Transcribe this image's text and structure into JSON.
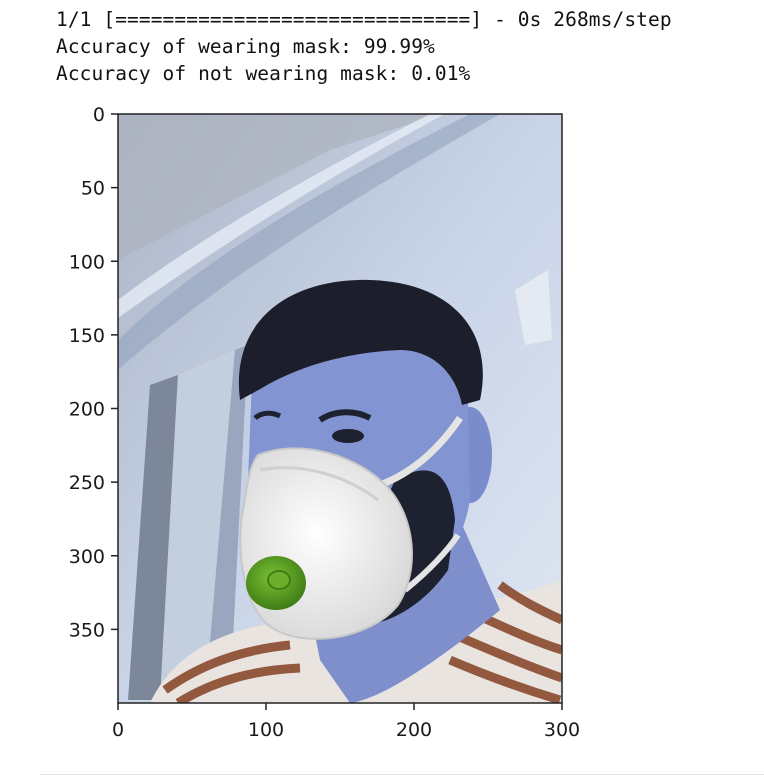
{
  "output": {
    "progress_line": "1/1 [==============================] - 0s 268ms/step",
    "mask_line": "Accuracy of wearing mask: 99.99%",
    "no_mask_line": "Accuracy of not wearing mask: 0.01%"
  },
  "figure": {
    "image_content": "photo-man-wearing-white-respirator-with-green-valve",
    "x_ticks": [
      "0",
      "100",
      "200",
      "300"
    ],
    "y_ticks": [
      "0",
      "50",
      "100",
      "150",
      "200",
      "250",
      "300",
      "350"
    ],
    "x_range": [
      0,
      300
    ],
    "y_range": [
      0,
      400
    ],
    "colors": {
      "wall": "#c4d1e6",
      "hair": "#1c1f2b",
      "skin": "#7f90cc",
      "mask": "#eeeeee",
      "valve": "#5ea024",
      "shirt_stripe": "#8a4a2e"
    }
  }
}
